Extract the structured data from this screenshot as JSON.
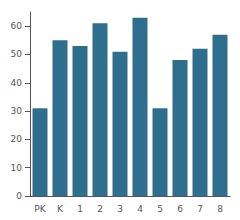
{
  "chart_data": {
    "type": "bar",
    "categories": [
      "PK",
      "K",
      "1",
      "2",
      "3",
      "4",
      "5",
      "6",
      "7",
      "8"
    ],
    "values": [
      31,
      55,
      53,
      61,
      51,
      63,
      31,
      48,
      52,
      57
    ],
    "color": "#2e6f8e",
    "ylim": [
      0,
      65
    ],
    "yticks": [
      0,
      10,
      20,
      30,
      40,
      50,
      60
    ],
    "grid": false
  }
}
